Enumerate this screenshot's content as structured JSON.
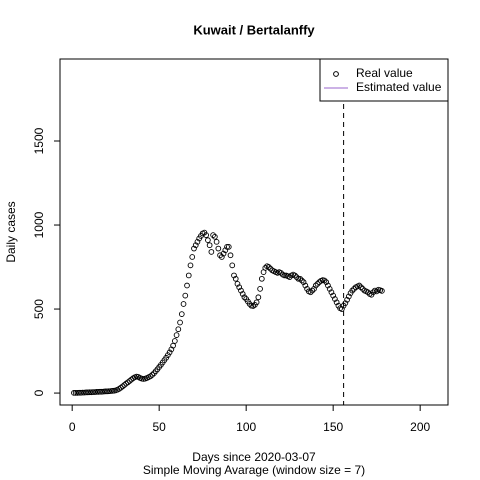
{
  "chart_data": {
    "type": "scatter",
    "title": "Kuwait / Bertalanffy",
    "xlabel": "Days since 2020-03-07",
    "subtitle": "Simple Moving Avarage (window size = 7)",
    "ylabel": "Daily cases",
    "xlim": [
      -7,
      216
    ],
    "ylim": [
      -71,
      1988
    ],
    "xticks": [
      0,
      50,
      100,
      150,
      200
    ],
    "yticks": [
      0,
      500,
      1000,
      1500
    ],
    "vline": 156,
    "legend_position": "topright",
    "legend": [
      {
        "name": "Real value",
        "symbol": "circle",
        "color": "#000000"
      },
      {
        "name": "Estimated value",
        "symbol": "line",
        "color": "#9966cc"
      }
    ],
    "x": [
      1,
      2,
      3,
      4,
      5,
      6,
      7,
      8,
      9,
      10,
      11,
      12,
      13,
      14,
      15,
      16,
      17,
      18,
      19,
      20,
      21,
      22,
      23,
      24,
      25,
      26,
      27,
      28,
      29,
      30,
      31,
      32,
      33,
      34,
      35,
      36,
      37,
      38,
      39,
      40,
      41,
      42,
      43,
      44,
      45,
      46,
      47,
      48,
      49,
      50,
      51,
      52,
      53,
      54,
      55,
      56,
      57,
      58,
      59,
      60,
      61,
      62,
      63,
      64,
      65,
      66,
      67,
      68,
      69,
      70,
      71,
      72,
      73,
      74,
      75,
      76,
      77,
      78,
      79,
      80,
      81,
      82,
      83,
      84,
      85,
      86,
      87,
      88,
      89,
      90,
      91,
      92,
      93,
      94,
      95,
      96,
      97,
      98,
      99,
      100,
      101,
      102,
      103,
      104,
      105,
      106,
      107,
      108,
      109,
      110,
      111,
      112,
      113,
      114,
      115,
      116,
      117,
      118,
      119,
      120,
      121,
      122,
      123,
      124,
      125,
      126,
      127,
      128,
      129,
      130,
      131,
      132,
      133,
      134,
      135,
      136,
      137,
      138,
      139,
      140,
      141,
      142,
      143,
      144,
      145,
      146,
      147,
      148,
      149,
      150,
      151,
      152,
      153,
      154,
      155,
      156,
      157,
      158,
      159,
      160,
      161,
      162,
      163,
      164,
      165,
      166,
      167,
      168,
      169,
      170,
      171,
      172,
      173,
      174,
      175,
      176,
      177,
      178
    ],
    "values": [
      1,
      1,
      1,
      2,
      2,
      3,
      3,
      4,
      4,
      5,
      5,
      6,
      6,
      7,
      7,
      8,
      8,
      9,
      10,
      10,
      11,
      12,
      13,
      14,
      16,
      20,
      25,
      32,
      40,
      48,
      56,
      64,
      72,
      80,
      88,
      94,
      98,
      96,
      90,
      86,
      84,
      86,
      90,
      95,
      100,
      108,
      118,
      130,
      142,
      155,
      168,
      182,
      196,
      210,
      226,
      242,
      260,
      282,
      310,
      345,
      380,
      420,
      470,
      530,
      580,
      640,
      700,
      760,
      810,
      860,
      880,
      900,
      920,
      935,
      950,
      955,
      940,
      910,
      880,
      840,
      940,
      930,
      900,
      860,
      820,
      810,
      830,
      850,
      870,
      870,
      820,
      760,
      700,
      680,
      650,
      630,
      610,
      590,
      570,
      560,
      545,
      530,
      520,
      518,
      525,
      540,
      570,
      620,
      680,
      720,
      745,
      755,
      750,
      740,
      730,
      725,
      720,
      715,
      720,
      715,
      705,
      700,
      700,
      695,
      690,
      700,
      705,
      700,
      690,
      680,
      680,
      670,
      660,
      640,
      620,
      605,
      600,
      610,
      620,
      640,
      650,
      660,
      668,
      672,
      670,
      660,
      640,
      620,
      600,
      580,
      560,
      540,
      520,
      505,
      500,
      520,
      535,
      555,
      575,
      595,
      610,
      620,
      630,
      635,
      640,
      630,
      620,
      610,
      605,
      600,
      590,
      585,
      600,
      610,
      605,
      615,
      612,
      608
    ]
  }
}
